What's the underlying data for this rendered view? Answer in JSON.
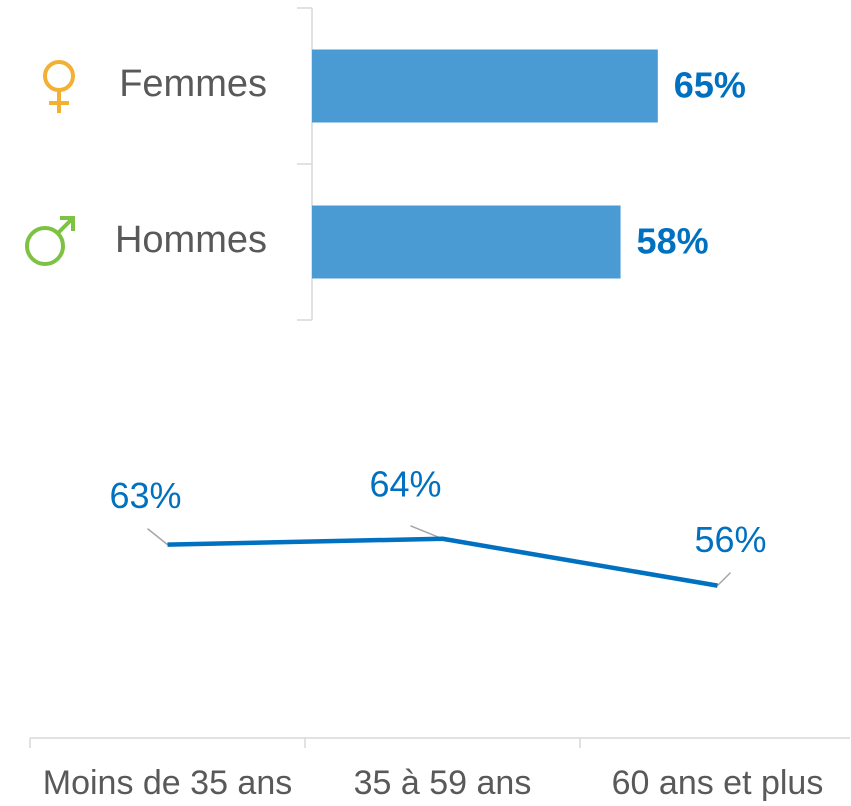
{
  "chart_data": [
    {
      "type": "hbar",
      "categories": [
        "Femmes",
        "Hommes"
      ],
      "values": [
        65,
        58
      ],
      "value_labels": [
        "65%",
        "58%"
      ],
      "color": "#4a9bd4",
      "label_color": "#0070c0",
      "xlim": [
        0,
        100
      ]
    },
    {
      "type": "line",
      "categories": [
        "Moins de 35 ans",
        "35 à 59 ans",
        "60 ans et plus"
      ],
      "values": [
        63,
        64,
        56
      ],
      "value_labels": [
        "63%",
        "64%",
        "56%"
      ],
      "color": "#0070c0",
      "ylim": [
        30,
        80
      ]
    }
  ]
}
